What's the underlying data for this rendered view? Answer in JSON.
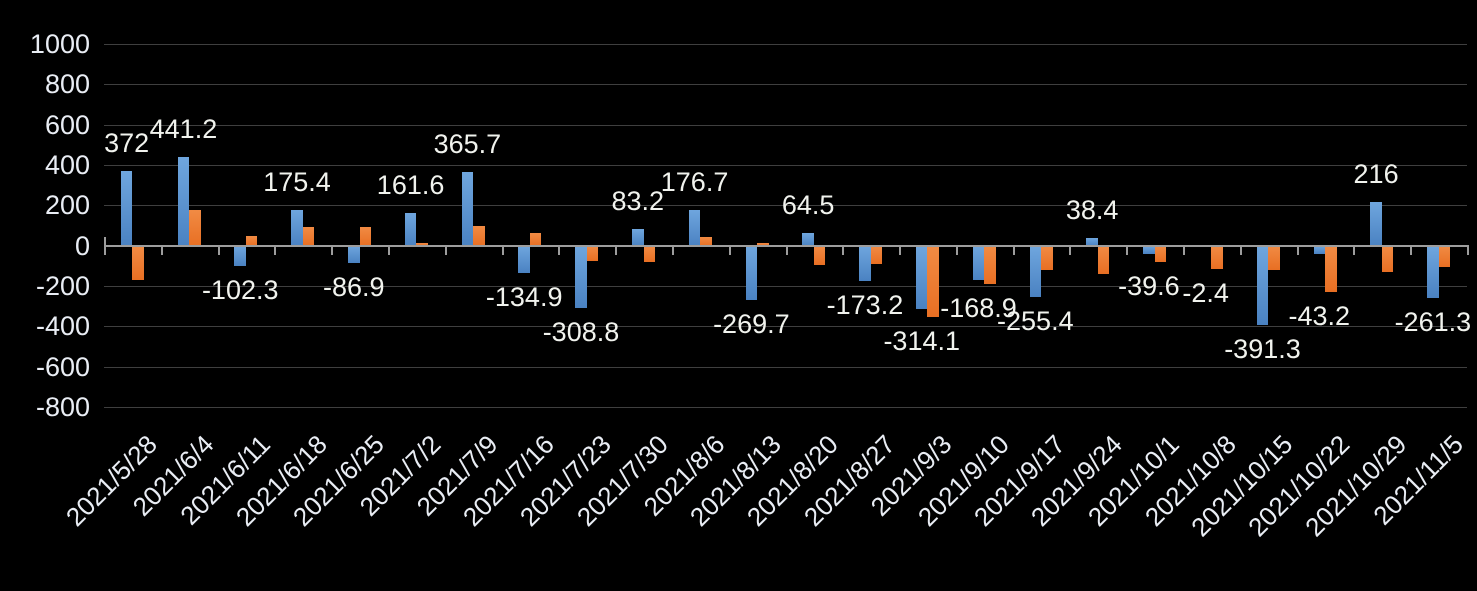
{
  "chart_data": {
    "type": "bar",
    "title": "",
    "legend": "none",
    "grid": true,
    "categories": [
      "2021/5/28",
      "2021/6/4",
      "2021/6/11",
      "2021/6/18",
      "2021/6/25",
      "2021/7/2",
      "2021/7/9",
      "2021/7/16",
      "2021/7/23",
      "2021/7/30",
      "2021/8/6",
      "2021/8/13",
      "2021/8/20",
      "2021/8/27",
      "2021/9/3",
      "2021/9/10",
      "2021/9/17",
      "2021/9/24",
      "2021/10/1",
      "2021/10/8",
      "2021/10/15",
      "2021/10/22",
      "2021/10/29",
      "2021/11/5"
    ],
    "series": [
      {
        "name": "blue-series",
        "color_top": "#6fa6de",
        "color_bottom": "#4a82c2",
        "values": [
          372,
          441.2,
          -102.3,
          175.4,
          -86.9,
          161.6,
          365.7,
          -134.9,
          -308.8,
          83.2,
          176.7,
          -269.7,
          64.5,
          -173.2,
          -314.1,
          -168.9,
          -255.4,
          38.4,
          -39.6,
          -2.4,
          -391.3,
          -43.2,
          216,
          -261.3
        ],
        "labels": [
          "372",
          "441.2",
          "-102.3",
          "175.4",
          "-86.9",
          "161.6",
          "365.7",
          "-134.9",
          "-308.8",
          "83.2",
          "176.7",
          "-269.7",
          "64.5",
          "-173.2",
          "-314.1",
          "-168.9",
          "-255.4",
          "38.4",
          "-39.6",
          "-2.4",
          "-391.3",
          "-43.2",
          "216",
          "-261.3"
        ],
        "labeled": true
      },
      {
        "name": "orange-series",
        "color_top": "#f18b44",
        "color_bottom": "#e86f23",
        "values": [
          -170,
          175,
          48,
          95,
          95,
          15,
          100,
          65,
          -75,
          -80,
          45,
          15,
          -95,
          -90,
          -355,
          -190,
          -120,
          -140,
          -80,
          -115,
          -120,
          -230,
          -130,
          -105
        ],
        "labels": [],
        "labeled": false
      }
    ],
    "y_axis": {
      "min": -800,
      "max": 1000,
      "step": 200,
      "ticks": [
        "1000",
        "800",
        "600",
        "400",
        "200",
        "0",
        "-200",
        "-400",
        "-600",
        "-800"
      ]
    },
    "colors": {
      "background": "#000000",
      "gridline": "#3f3f3f",
      "axis": "#9d9d9d",
      "tick_label_text": "#e9edf4",
      "data_label_text": "#f1f3ee"
    }
  }
}
